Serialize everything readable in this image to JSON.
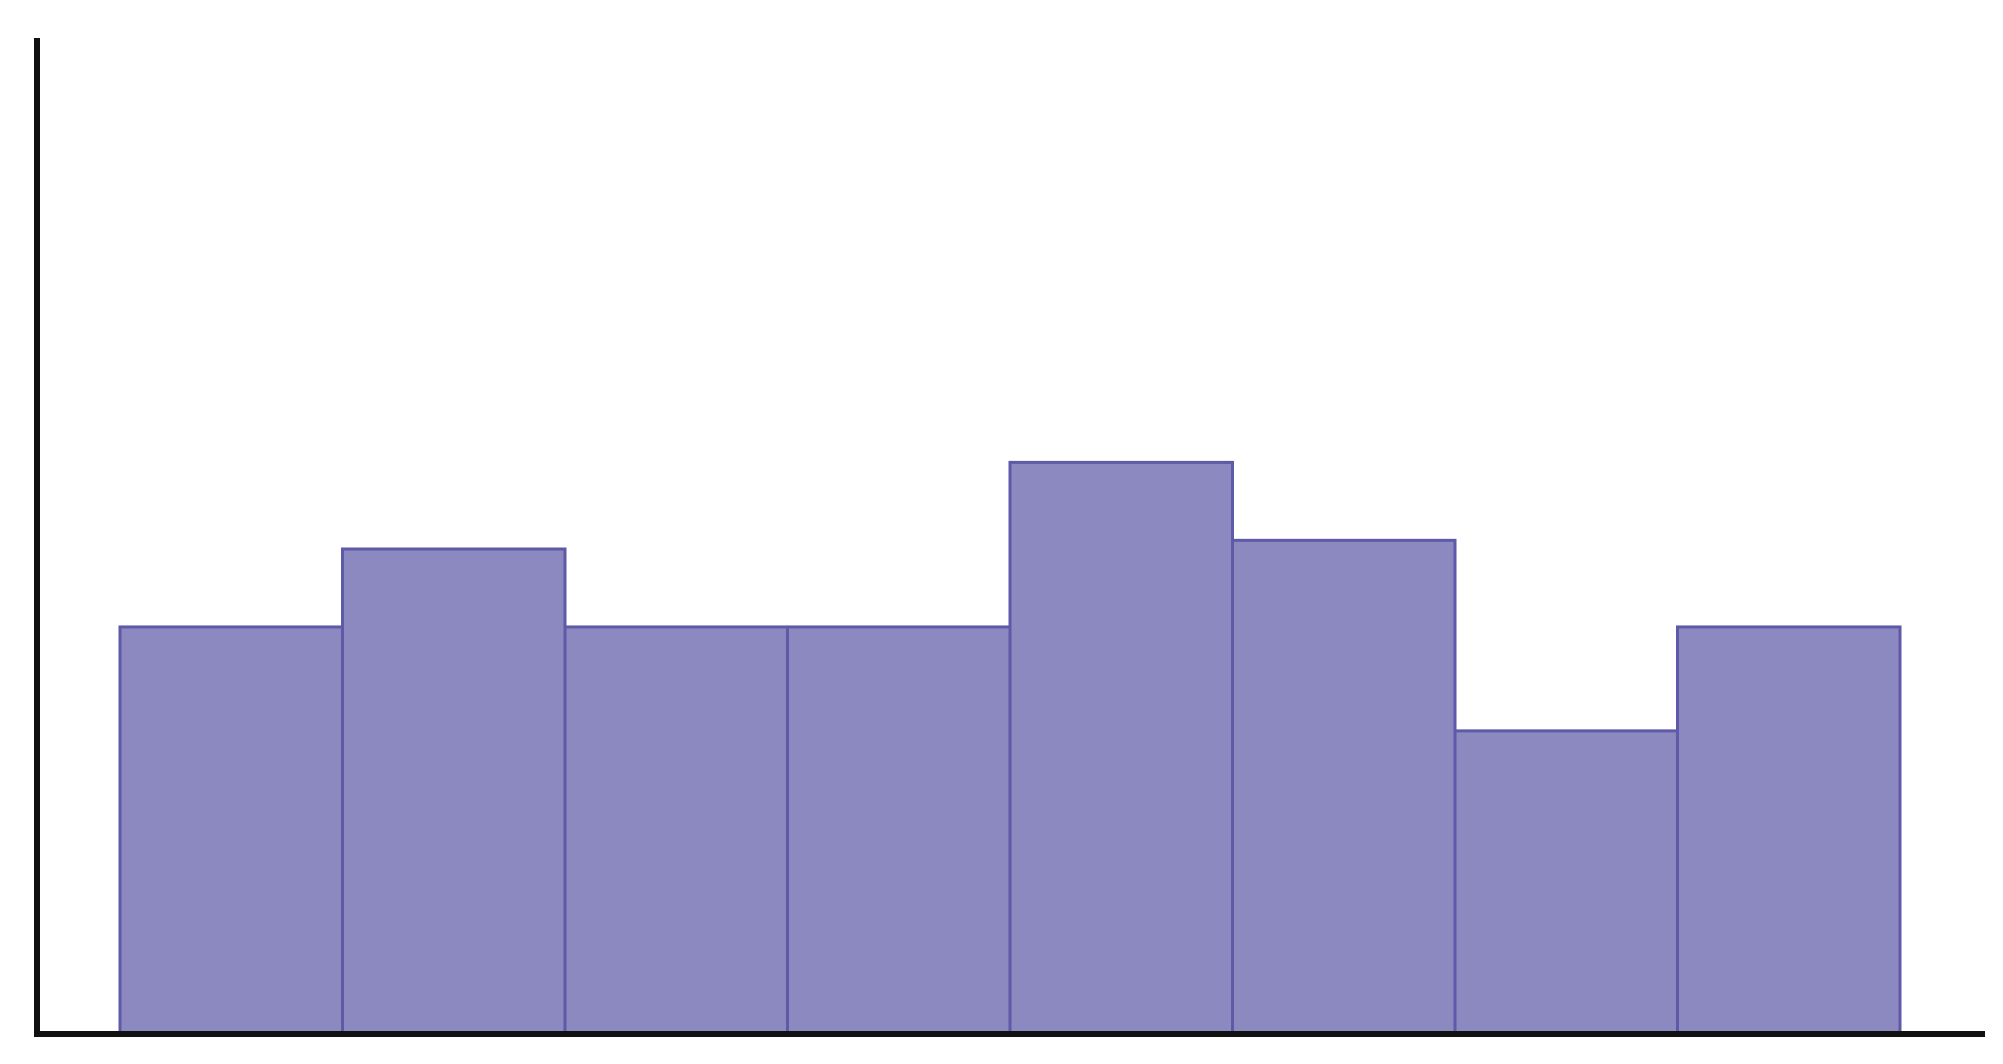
{
  "chart_data": {
    "type": "bar",
    "categories": [
      "",
      "",
      "",
      "",
      "",
      "",
      "",
      ""
    ],
    "values": [
      4.7,
      5.6,
      4.7,
      4.7,
      6.6,
      5.7,
      3.5,
      4.7
    ],
    "ylim": [
      0,
      11.5
    ],
    "grid": false,
    "legend": "none",
    "title": "",
    "xlabel": "",
    "ylabel": "",
    "colors": {
      "bar_fill": "#8b89c0",
      "bar_stroke": "#5e5aa8",
      "axis": "#111111",
      "background": "#ffffff"
    }
  }
}
